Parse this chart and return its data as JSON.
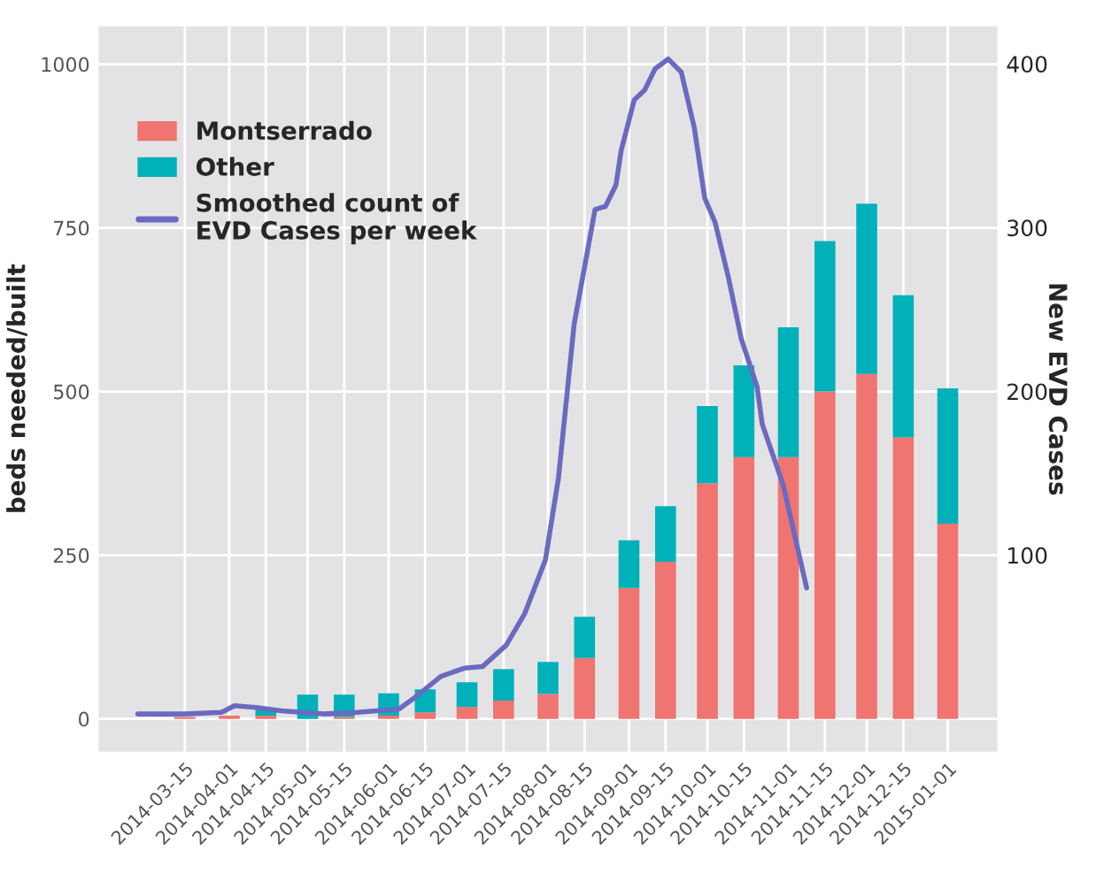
{
  "chart_data": {
    "type": "bar",
    "stacked": true,
    "xlabel": null,
    "ylabel": "beds needed/built",
    "y2label": "New EVD Cases",
    "x": [
      "2014-03-15",
      "2014-04-01",
      "2014-04-15",
      "2014-05-01",
      "2014-05-15",
      "2014-06-01",
      "2014-06-15",
      "2014-07-01",
      "2014-07-15",
      "2014-08-01",
      "2014-08-15",
      "2014-09-01",
      "2014-09-15",
      "2014-10-01",
      "2014-10-15",
      "2014-11-01",
      "2014-11-15",
      "2014-12-01",
      "2014-12-15",
      "2015-01-01"
    ],
    "series": [
      {
        "name": "Montserrado",
        "color": "#f07470",
        "values": [
          3,
          5,
          5,
          0,
          3,
          5,
          10,
          18,
          28,
          38,
          93,
          200,
          240,
          360,
          400,
          400,
          500,
          527,
          430,
          298
        ]
      },
      {
        "name": "Other",
        "color": "#00b1b9",
        "values": [
          null,
          null,
          9,
          37,
          34,
          34,
          35,
          38,
          48,
          49,
          63,
          73,
          85,
          118,
          140,
          198,
          230,
          260,
          217,
          207
        ]
      },
      {
        "name": "Smoothed count of\nEVD Cases per week",
        "type": "line",
        "axis": "y2",
        "color": "#6a6ac0",
        "x": [
          "2014-02-25",
          "2014-03-15",
          "2014-03-29",
          "2014-04-03",
          "2014-04-11",
          "2014-04-21",
          "2014-05-07",
          "2014-05-20",
          "2014-06-05",
          "2014-06-11",
          "2014-06-21",
          "2014-06-30",
          "2014-07-07",
          "2014-07-16",
          "2014-07-23",
          "2014-07-31",
          "2014-08-05",
          "2014-08-11",
          "2014-08-19",
          "2014-08-23",
          "2014-08-27",
          "2014-08-29",
          "2014-09-03",
          "2014-09-07",
          "2014-09-11",
          "2014-09-16",
          "2014-09-21",
          "2014-09-26",
          "2014-09-30",
          "2014-10-04",
          "2014-10-09",
          "2014-10-14",
          "2014-10-20",
          "2014-10-22",
          "2014-10-30",
          "2014-11-08"
        ],
        "values": [
          3,
          3,
          4,
          8,
          7,
          5,
          3,
          4,
          6,
          13,
          26,
          31,
          32,
          45,
          64,
          97,
          147,
          241,
          311,
          313,
          326,
          347,
          378,
          384,
          397,
          403,
          395,
          361,
          318,
          303,
          270,
          232,
          203,
          180,
          143,
          80
        ]
      }
    ],
    "xlim": [
      "2014-02-10",
      "2015-01-20"
    ],
    "xticks": [
      "2014-03-15",
      "2014-04-01",
      "2014-04-15",
      "2014-05-01",
      "2014-05-15",
      "2014-06-01",
      "2014-06-15",
      "2014-07-01",
      "2014-07-15",
      "2014-08-01",
      "2014-08-15",
      "2014-09-01",
      "2014-09-15",
      "2014-10-01",
      "2014-10-15",
      "2014-11-01",
      "2014-11-15",
      "2014-12-01",
      "2014-12-15",
      "2015-01-01"
    ],
    "ylim": [
      -50,
      1058
    ],
    "yticks": [
      0,
      250,
      500,
      750,
      1000
    ],
    "y2lim": [
      -20,
      423
    ],
    "y2ticks": [
      100,
      200,
      300,
      400
    ],
    "grid": true,
    "legend": "top left"
  }
}
